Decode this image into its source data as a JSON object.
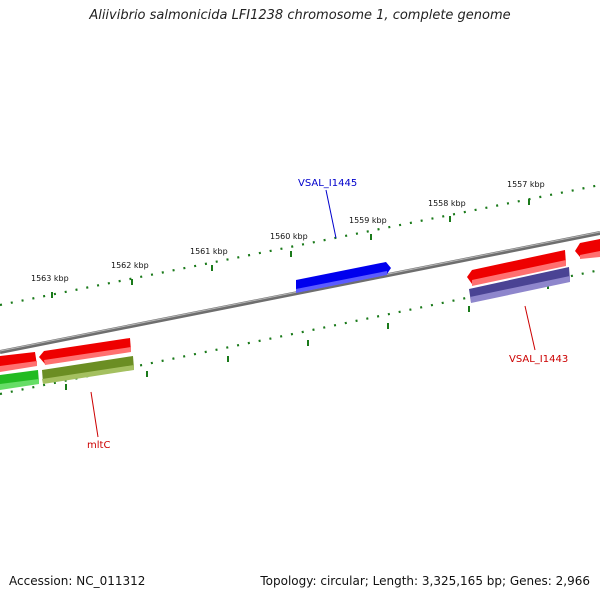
{
  "title": "Aliivibrio salmonicida LFI1238 chromosome 1, complete genome",
  "footer": {
    "accession": "Accession: NC_011312",
    "summary": "Topology: circular; Length: 3,325,165 bp; Genes: 2,966"
  },
  "ticks": [
    "1557 kbp",
    "1558 kbp",
    "1559 kbp",
    "1560 kbp",
    "1561 kbp",
    "1562 kbp",
    "1563 kbp"
  ],
  "labels": {
    "vsal_i1445": "VSAL_I1445",
    "vsal_i1443": "VSAL_I1443",
    "mltc": "mltC"
  },
  "colors": {
    "tick_track": "#1a7a1a",
    "backbone": "#808080",
    "forward_red": "#ee0000",
    "blue": "#0000ee",
    "purple": "#4a4394",
    "olive": "#6b8e23",
    "green": "#33cc33",
    "label_blue": "#0000cc",
    "label_red": "#cc0000"
  }
}
